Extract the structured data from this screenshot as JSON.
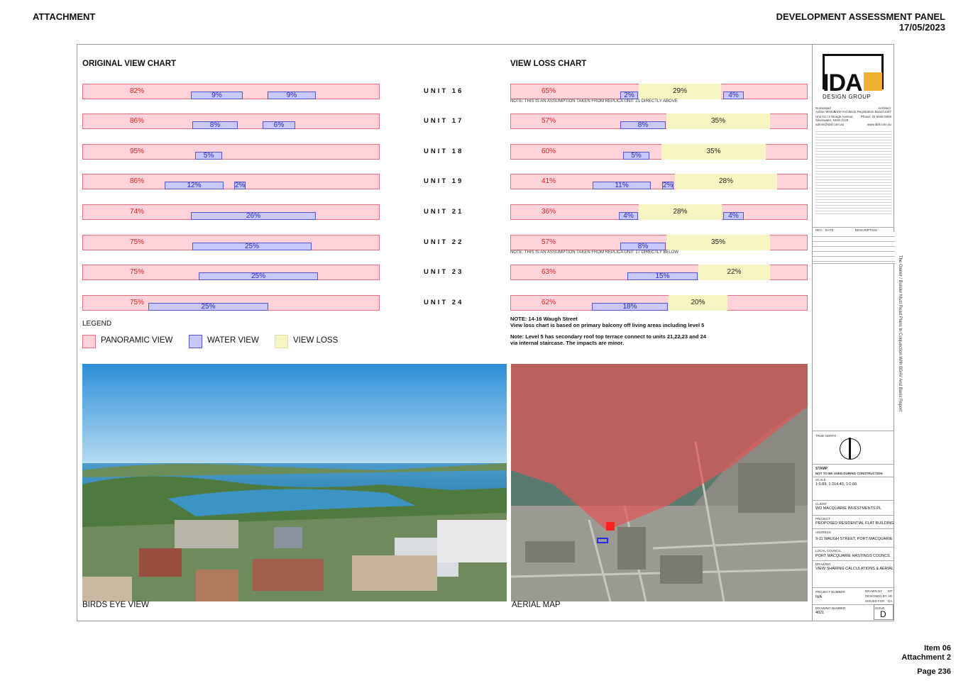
{
  "header": {
    "left": "ATTACHMENT",
    "right_title": "DEVELOPMENT ASSESSMENT PANEL",
    "right_date": "17/05/2023"
  },
  "original_chart": {
    "title": "ORIGINAL VIEW CHART",
    "rows": [
      {
        "unit": "UNIT 16",
        "pano": "82%",
        "water": [
          "9%",
          "9%"
        ]
      },
      {
        "unit": "UNIT 17",
        "pano": "86%",
        "water": [
          "8%",
          "6%"
        ]
      },
      {
        "unit": "UNIT 18",
        "pano": "95%",
        "water": [
          "5%"
        ]
      },
      {
        "unit": "UNIT 19",
        "pano": "86%",
        "water": [
          "12%",
          "2%"
        ]
      },
      {
        "unit": "UNIT 21",
        "pano": "74%",
        "water": [
          "26%"
        ]
      },
      {
        "unit": "UNIT 22",
        "pano": "75%",
        "water": [
          "25%"
        ]
      },
      {
        "unit": "UNIT 23",
        "pano": "75%",
        "water": [
          "25%"
        ]
      },
      {
        "unit": "UNIT 24",
        "pano": "75%",
        "water": [
          "25%"
        ]
      }
    ]
  },
  "loss_chart": {
    "title": "VIEW LOSS CHART",
    "rows": [
      {
        "pano": "65%",
        "water": [
          "2%",
          "4%"
        ],
        "loss": "29%",
        "note": "NOTE: THIS IS AN ASSUMPTION TAKEN FROM REPLICA UNIT 21 DIRECTLY ABOVE"
      },
      {
        "pano": "57%",
        "water": [
          "8%"
        ],
        "loss": "35%"
      },
      {
        "pano": "60%",
        "water": [
          "5%"
        ],
        "loss": "35%"
      },
      {
        "pano": "41%",
        "water": [
          "11%",
          "2%"
        ],
        "loss": "28%"
      },
      {
        "pano": "36%",
        "water": [
          "4%",
          "4%"
        ],
        "loss": "28%"
      },
      {
        "pano": "57%",
        "water": [
          "8%"
        ],
        "loss": "35%",
        "note": "NOTE: THIS IS AN ASSUMPTION TAKEN FROM REPLICA UNIT 17 DIRECTLY BELOW"
      },
      {
        "pano": "63%",
        "water": [
          "15%"
        ],
        "loss": "22%"
      },
      {
        "pano": "62%",
        "water": [
          "18%"
        ],
        "loss": "20%"
      }
    ]
  },
  "legend": {
    "title": "LEGEND",
    "panoramic": "PANORAMIC VIEW",
    "water": "WATER VIEW",
    "loss": "VIEW LOSS"
  },
  "notes": {
    "n1_title": "NOTE: 14-16 Waugh Street",
    "n1_body": "View loss chart is based on primary balcony off living areas including level 5",
    "n2_line1": "Note: Level 5 has secondary roof top terrace connect to units 21,22,23 and 24",
    "n2_line2": "via internal staircase. The impacts are minor."
  },
  "captions": {
    "birds": "BIRDS EYE VIEW",
    "aerial": "AERIAL MAP"
  },
  "title_block": {
    "logo_text": "IDA",
    "logo_sub": "DESIGN GROUP",
    "nominated": "Nominated",
    "architect": "Architect:",
    "person": "Adrian Winton",
    "reg": "NSW Architects Registration Board 3347",
    "addr1": "Unit A3 / 2 Stough Avenue,",
    "addr2": "Silverwater, NSW 2128",
    "phone": "Phone: 02 9648 0848",
    "email": "admin@idaf.com.au",
    "web": "www.idaf.com.au",
    "rev": "REV",
    "date": "DATE",
    "desc": "DESCRIPTION",
    "side_note": "The Owner / Builder Must Read Plans In Conjunction With BDAV And Basix Report",
    "north": "TRUE NORTH",
    "stamp": "STAMP",
    "stamp_sub": "NOT TO BE USED DURING CONSTRUCTION",
    "scale_label": "SCALE",
    "scale": "1:0.89, 1:314.40, 1:0.66",
    "client_label": "CLIENT",
    "client": "WD MACQUARIE INVESTMENTS PL",
    "project_label": "PROJECT",
    "project": "PROPOSED RESIDENTIAL FLAT BUILDING",
    "address_label": "ADDRESS",
    "address": "9-11 WAUGH STREET, PORT MACQUARIE",
    "council_label": "LOCAL COUNCIL",
    "council": "PORT MACQUARIE HASTINGS COUNCIL",
    "drawing_label": "DRAWING",
    "drawing": "VIEW SHARING CALCULATIONS & AERIAL",
    "projnum_label": "PROJECT NUMBER",
    "projnum": "N/A",
    "drawn": "DRAWN BY",
    "drawn_v": "MT",
    "designed": "DESIGNED BY",
    "designed_v": "AR",
    "issued": "ISSUED FOR",
    "issued_v": "DA",
    "drawnum_label": "DRAWING NUMBER",
    "drawnum": "4021",
    "issue_label": "ISSUE",
    "issue": "D"
  },
  "footer": {
    "item": "Item 06",
    "attachment": "Attachment 2",
    "page": "Page 236"
  }
}
